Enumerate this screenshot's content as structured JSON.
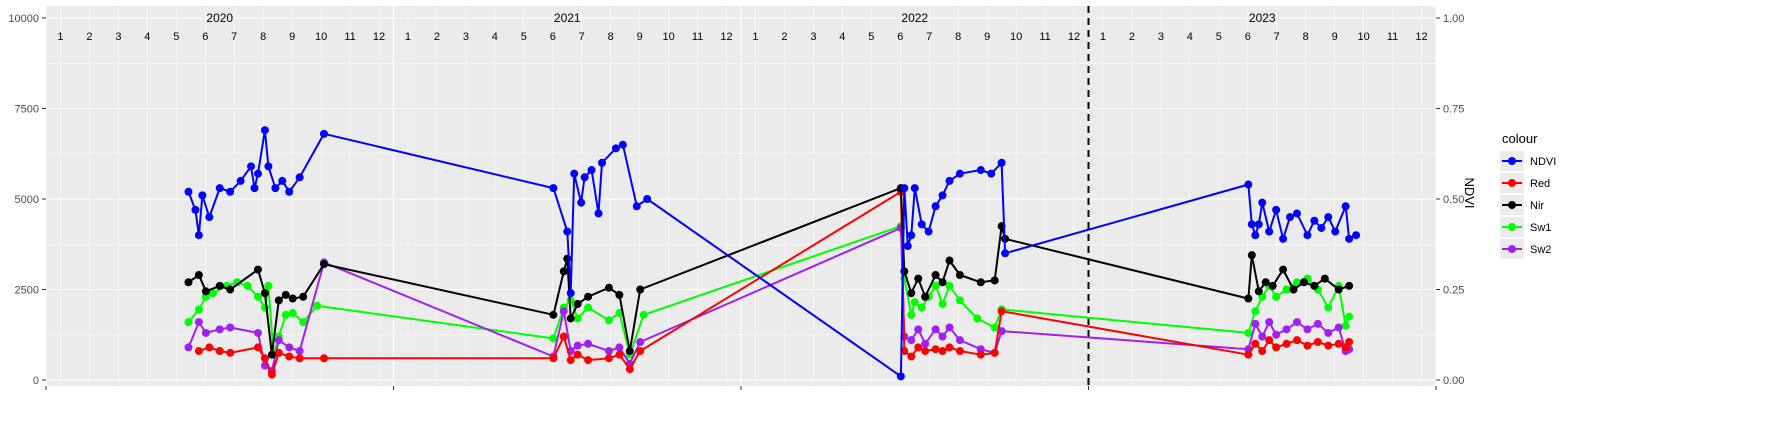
{
  "chart_data": {
    "type": "line",
    "title": "",
    "xlabel": "",
    "ylabel_left": "",
    "ylabel_right": "NDVI",
    "ylim_left": [
      0,
      10000
    ],
    "ylim_right": [
      0,
      1
    ],
    "y_ticks_left": [
      "0",
      "2500",
      "5000",
      "7500",
      "10000"
    ],
    "y_ticks_right": [
      "0.00",
      "0.25",
      "0.50",
      "0.75",
      "1.00"
    ],
    "years": [
      "2020",
      "2021",
      "2022",
      "2023"
    ],
    "months": [
      "1",
      "2",
      "3",
      "4",
      "5",
      "6",
      "7",
      "8",
      "9",
      "10",
      "11",
      "12"
    ],
    "vline_x": 2023.0,
    "grid": true,
    "legend": {
      "title": "colour",
      "placement": "right",
      "items": [
        {
          "label": "NDVI",
          "color": "#0000ff"
        },
        {
          "label": "Red",
          "color": "#ff0000"
        },
        {
          "label": "Nir",
          "color": "#000000"
        },
        {
          "label": "Sw1",
          "color": "#00ff00"
        },
        {
          "label": "Sw2",
          "color": "#a020f0"
        }
      ]
    },
    "series": [
      {
        "name": "Sw1",
        "color": "#00ff00",
        "points": [
          [
            2020.41,
            1600
          ],
          [
            2020.44,
            1950
          ],
          [
            2020.46,
            2300
          ],
          [
            2020.48,
            2400
          ],
          [
            2020.52,
            2600
          ],
          [
            2020.55,
            2700
          ],
          [
            2020.58,
            2600
          ],
          [
            2020.61,
            2300
          ],
          [
            2020.63,
            2000
          ],
          [
            2020.64,
            2600
          ],
          [
            2020.655,
            700
          ],
          [
            2020.67,
            1200
          ],
          [
            2020.69,
            1800
          ],
          [
            2020.71,
            1850
          ],
          [
            2020.74,
            1600
          ],
          [
            2020.78,
            2050
          ],
          [
            2021.46,
            1150
          ],
          [
            2021.49,
            2000
          ],
          [
            2021.51,
            2200
          ],
          [
            2021.53,
            1700
          ],
          [
            2021.56,
            2000
          ],
          [
            2021.62,
            1650
          ],
          [
            2021.65,
            1850
          ],
          [
            2021.68,
            700
          ],
          [
            2021.72,
            1800
          ],
          [
            2022.46,
            4250
          ],
          [
            2022.47,
            2800
          ],
          [
            2022.49,
            1800
          ],
          [
            2022.5,
            2150
          ],
          [
            2022.52,
            2000
          ],
          [
            2022.54,
            2300
          ],
          [
            2022.56,
            2600
          ],
          [
            2022.58,
            2100
          ],
          [
            2022.6,
            2600
          ],
          [
            2022.63,
            2200
          ],
          [
            2022.68,
            1700
          ],
          [
            2022.73,
            1450
          ],
          [
            2022.75,
            1950
          ],
          [
            2023.46,
            1300
          ],
          [
            2023.48,
            1900
          ],
          [
            2023.5,
            2300
          ],
          [
            2023.52,
            2600
          ],
          [
            2023.54,
            2300
          ],
          [
            2023.57,
            2500
          ],
          [
            2023.6,
            2700
          ],
          [
            2023.63,
            2800
          ],
          [
            2023.66,
            2500
          ],
          [
            2023.69,
            2000
          ],
          [
            2023.72,
            2600
          ],
          [
            2023.74,
            1500
          ],
          [
            2023.75,
            1750
          ]
        ]
      },
      {
        "name": "Sw2",
        "color": "#a020f0",
        "points": [
          [
            2020.41,
            900
          ],
          [
            2020.44,
            1600
          ],
          [
            2020.46,
            1300
          ],
          [
            2020.5,
            1400
          ],
          [
            2020.53,
            1450
          ],
          [
            2020.61,
            1300
          ],
          [
            2020.63,
            400
          ],
          [
            2020.65,
            250
          ],
          [
            2020.67,
            1100
          ],
          [
            2020.7,
            900
          ],
          [
            2020.73,
            800
          ],
          [
            2020.8,
            3250
          ],
          [
            2021.46,
            650
          ],
          [
            2021.49,
            1900
          ],
          [
            2021.51,
            800
          ],
          [
            2021.53,
            950
          ],
          [
            2021.56,
            1000
          ],
          [
            2021.62,
            800
          ],
          [
            2021.65,
            900
          ],
          [
            2021.68,
            450
          ],
          [
            2021.71,
            1050
          ],
          [
            2022.46,
            4200
          ],
          [
            2022.47,
            1200
          ],
          [
            2022.49,
            1100
          ],
          [
            2022.51,
            1400
          ],
          [
            2022.53,
            1000
          ],
          [
            2022.56,
            1400
          ],
          [
            2022.58,
            1200
          ],
          [
            2022.6,
            1450
          ],
          [
            2022.63,
            1100
          ],
          [
            2022.69,
            850
          ],
          [
            2022.73,
            750
          ],
          [
            2022.75,
            1350
          ],
          [
            2023.46,
            850
          ],
          [
            2023.48,
            1550
          ],
          [
            2023.5,
            1200
          ],
          [
            2023.52,
            1600
          ],
          [
            2023.54,
            1250
          ],
          [
            2023.57,
            1400
          ],
          [
            2023.6,
            1600
          ],
          [
            2023.63,
            1400
          ],
          [
            2023.66,
            1550
          ],
          [
            2023.69,
            1300
          ],
          [
            2023.72,
            1450
          ],
          [
            2023.74,
            800
          ],
          [
            2023.75,
            850
          ]
        ]
      },
      {
        "name": "Red",
        "color": "#ff0000",
        "points": [
          [
            2020.44,
            800
          ],
          [
            2020.47,
            900
          ],
          [
            2020.5,
            800
          ],
          [
            2020.53,
            750
          ],
          [
            2020.61,
            900
          ],
          [
            2020.63,
            600
          ],
          [
            2020.65,
            150
          ],
          [
            2020.67,
            750
          ],
          [
            2020.7,
            650
          ],
          [
            2020.73,
            600
          ],
          [
            2020.8,
            600
          ],
          [
            2021.46,
            600
          ],
          [
            2021.49,
            1200
          ],
          [
            2021.51,
            550
          ],
          [
            2021.53,
            700
          ],
          [
            2021.56,
            550
          ],
          [
            2021.62,
            600
          ],
          [
            2021.65,
            700
          ],
          [
            2021.68,
            300
          ],
          [
            2021.71,
            800
          ],
          [
            2022.46,
            5200
          ],
          [
            2022.47,
            800
          ],
          [
            2022.49,
            650
          ],
          [
            2022.51,
            900
          ],
          [
            2022.53,
            800
          ],
          [
            2022.56,
            850
          ],
          [
            2022.58,
            800
          ],
          [
            2022.6,
            900
          ],
          [
            2022.63,
            800
          ],
          [
            2022.69,
            700
          ],
          [
            2022.73,
            750
          ],
          [
            2022.75,
            1900
          ],
          [
            2023.46,
            700
          ],
          [
            2023.48,
            1000
          ],
          [
            2023.5,
            800
          ],
          [
            2023.52,
            1100
          ],
          [
            2023.54,
            900
          ],
          [
            2023.57,
            1000
          ],
          [
            2023.6,
            1100
          ],
          [
            2023.63,
            950
          ],
          [
            2023.66,
            1050
          ],
          [
            2023.69,
            950
          ],
          [
            2023.72,
            1000
          ],
          [
            2023.74,
            900
          ],
          [
            2023.75,
            1050
          ]
        ]
      },
      {
        "name": "Nir",
        "color": "#000000",
        "points": [
          [
            2020.41,
            2700
          ],
          [
            2020.44,
            2900
          ],
          [
            2020.46,
            2450
          ],
          [
            2020.5,
            2600
          ],
          [
            2020.53,
            2500
          ],
          [
            2020.61,
            3050
          ],
          [
            2020.63,
            2400
          ],
          [
            2020.65,
            700
          ],
          [
            2020.67,
            2200
          ],
          [
            2020.69,
            2350
          ],
          [
            2020.71,
            2250
          ],
          [
            2020.74,
            2300
          ],
          [
            2020.8,
            3200
          ],
          [
            2021.46,
            1800
          ],
          [
            2021.49,
            3000
          ],
          [
            2021.5,
            3350
          ],
          [
            2021.51,
            1700
          ],
          [
            2021.53,
            2100
          ],
          [
            2021.56,
            2300
          ],
          [
            2021.62,
            2550
          ],
          [
            2021.65,
            2350
          ],
          [
            2021.68,
            800
          ],
          [
            2021.71,
            2500
          ],
          [
            2022.46,
            5300
          ],
          [
            2022.47,
            3000
          ],
          [
            2022.49,
            2400
          ],
          [
            2022.51,
            2800
          ],
          [
            2022.53,
            2300
          ],
          [
            2022.56,
            2900
          ],
          [
            2022.58,
            2700
          ],
          [
            2022.6,
            3300
          ],
          [
            2022.63,
            2900
          ],
          [
            2022.69,
            2700
          ],
          [
            2022.73,
            2750
          ],
          [
            2022.75,
            4250
          ],
          [
            2022.76,
            3900
          ],
          [
            2023.46,
            2250
          ],
          [
            2023.47,
            3450
          ],
          [
            2023.49,
            2450
          ],
          [
            2023.51,
            2700
          ],
          [
            2023.53,
            2600
          ],
          [
            2023.56,
            3050
          ],
          [
            2023.59,
            2500
          ],
          [
            2023.62,
            2700
          ],
          [
            2023.65,
            2600
          ],
          [
            2023.68,
            2800
          ],
          [
            2023.72,
            2500
          ],
          [
            2023.75,
            2600
          ]
        ]
      },
      {
        "name": "NDVI",
        "color": "#0000ff",
        "points": [
          [
            2020.41,
            0.52
          ],
          [
            2020.43,
            0.47
          ],
          [
            2020.44,
            0.4
          ],
          [
            2020.45,
            0.51
          ],
          [
            2020.47,
            0.45
          ],
          [
            2020.5,
            0.53
          ],
          [
            2020.53,
            0.52
          ],
          [
            2020.56,
            0.55
          ],
          [
            2020.59,
            0.59
          ],
          [
            2020.6,
            0.53
          ],
          [
            2020.61,
            0.57
          ],
          [
            2020.63,
            0.69
          ],
          [
            2020.64,
            0.59
          ],
          [
            2020.66,
            0.53
          ],
          [
            2020.68,
            0.55
          ],
          [
            2020.7,
            0.52
          ],
          [
            2020.73,
            0.56
          ],
          [
            2020.8,
            0.68
          ],
          [
            2021.46,
            0.53
          ],
          [
            2021.5,
            0.41
          ],
          [
            2021.51,
            0.24
          ],
          [
            2021.52,
            0.57
          ],
          [
            2021.54,
            0.49
          ],
          [
            2021.55,
            0.56
          ],
          [
            2021.57,
            0.58
          ],
          [
            2021.59,
            0.46
          ],
          [
            2021.6,
            0.6
          ],
          [
            2021.64,
            0.64
          ],
          [
            2021.66,
            0.65
          ],
          [
            2021.7,
            0.48
          ],
          [
            2021.73,
            0.5
          ],
          [
            2022.46,
            0.01
          ],
          [
            2022.47,
            0.53
          ],
          [
            2022.48,
            0.37
          ],
          [
            2022.49,
            0.4
          ],
          [
            2022.5,
            0.53
          ],
          [
            2022.52,
            0.43
          ],
          [
            2022.54,
            0.41
          ],
          [
            2022.56,
            0.48
          ],
          [
            2022.58,
            0.51
          ],
          [
            2022.6,
            0.55
          ],
          [
            2022.63,
            0.57
          ],
          [
            2022.69,
            0.58
          ],
          [
            2022.72,
            0.57
          ],
          [
            2022.75,
            0.6
          ],
          [
            2022.76,
            0.35
          ],
          [
            2023.46,
            0.54
          ],
          [
            2023.47,
            0.43
          ],
          [
            2023.48,
            0.4
          ],
          [
            2023.49,
            0.43
          ],
          [
            2023.5,
            0.49
          ],
          [
            2023.52,
            0.41
          ],
          [
            2023.54,
            0.47
          ],
          [
            2023.56,
            0.39
          ],
          [
            2023.58,
            0.45
          ],
          [
            2023.6,
            0.46
          ],
          [
            2023.63,
            0.4
          ],
          [
            2023.65,
            0.44
          ],
          [
            2023.67,
            0.42
          ],
          [
            2023.69,
            0.45
          ],
          [
            2023.71,
            0.41
          ],
          [
            2023.74,
            0.48
          ],
          [
            2023.75,
            0.39
          ],
          [
            2023.77,
            0.4
          ]
        ]
      }
    ]
  }
}
